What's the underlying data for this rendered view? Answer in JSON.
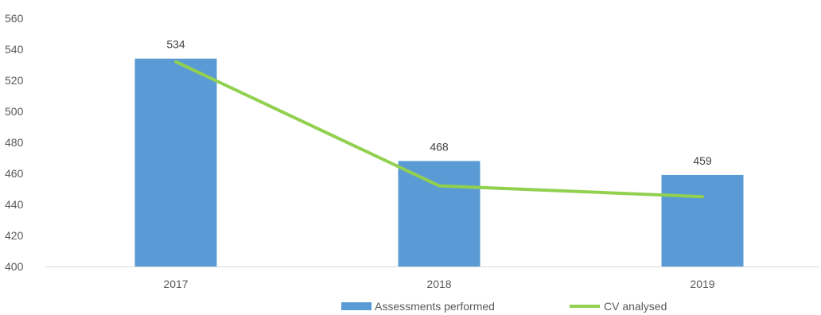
{
  "chart_data": {
    "type": "bar",
    "categories": [
      "2017",
      "2018",
      "2019"
    ],
    "series": [
      {
        "name": "Assessments performed",
        "type": "bar",
        "values": [
          534,
          468,
          459
        ],
        "data_labels": [
          "534",
          "468",
          "459"
        ],
        "color": "#5B9BD5"
      },
      {
        "name": "CV analysed",
        "type": "line",
        "values": [
          532,
          452,
          445
        ],
        "color": "#92D050"
      }
    ],
    "ylim": [
      400,
      560
    ],
    "yticks": [
      "560",
      "540",
      "520",
      "500",
      "480",
      "460",
      "440",
      "420",
      "400"
    ],
    "grid": false,
    "legend_position": "bottom-right",
    "axis_color": "#D9D9D9"
  }
}
